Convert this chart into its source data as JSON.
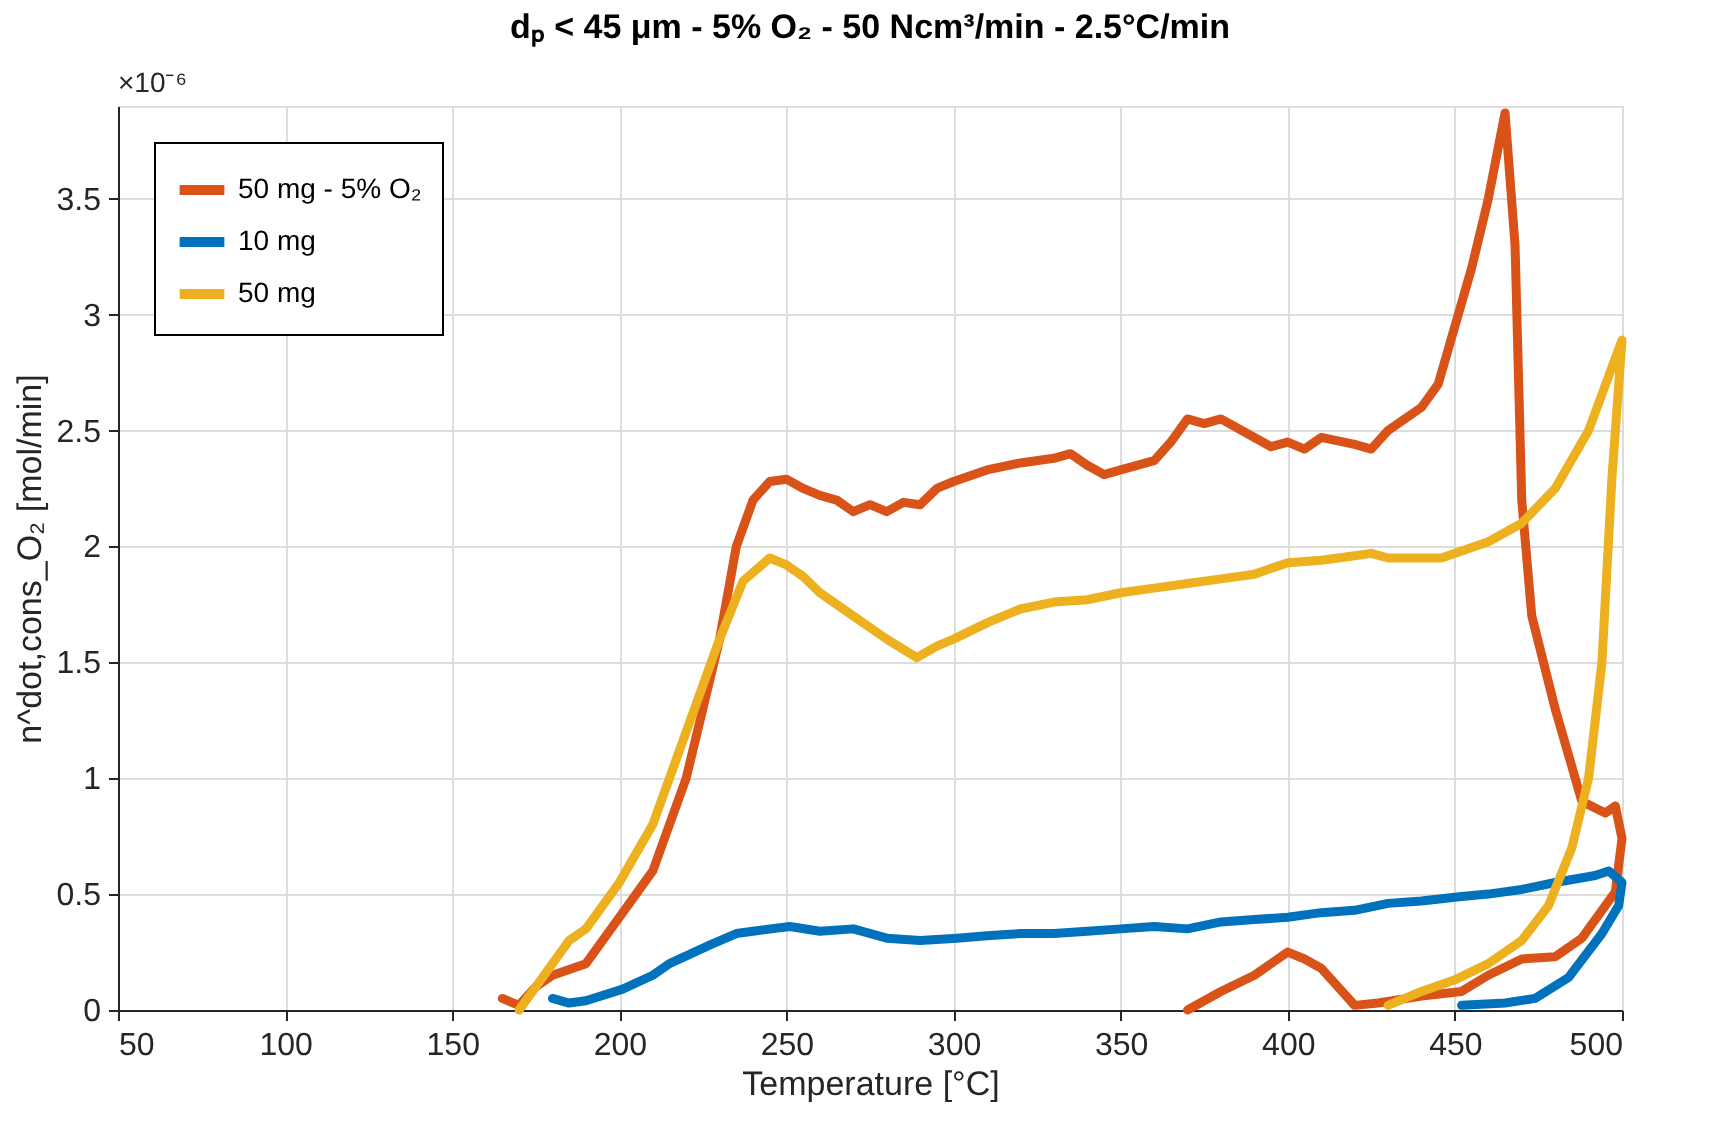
{
  "chart_data": {
    "type": "line",
    "title": "dₚ < 45 μm - 5% O₂ - 50 Ncm³/min - 2.5°C/min",
    "xlabel": "Temperature [°C]",
    "ylabel": "n^dot,cons_O₂ [mol/min]",
    "annotations": [
      "×10⁻⁶"
    ],
    "xlim": [
      50,
      500
    ],
    "xticks": [
      50,
      100,
      150,
      200,
      250,
      300,
      350,
      400,
      450,
      500
    ],
    "ylim": [
      0,
      3.9
    ],
    "yticks": [
      0,
      0.5,
      1,
      1.5,
      2,
      2.5,
      3,
      3.5
    ],
    "grid": true,
    "legend": "top left",
    "line_style": "solid",
    "marker": "none",
    "series": [
      {
        "name": "50 mg - 5% O₂",
        "color": "#d95319",
        "x": [
          165,
          170,
          175,
          180,
          190,
          200,
          210,
          220,
          230,
          235,
          240,
          245,
          250,
          255,
          260,
          265,
          270,
          275,
          280,
          285,
          290,
          295,
          300,
          310,
          320,
          330,
          335,
          340,
          345,
          350,
          360,
          365,
          370,
          375,
          380,
          390,
          395,
          400,
          405,
          410,
          420,
          425,
          430,
          440,
          445,
          450,
          455,
          460,
          465,
          468,
          470,
          473,
          480,
          488,
          495,
          498,
          500,
          498,
          488,
          480,
          470,
          460,
          452,
          440,
          427,
          420,
          415,
          410,
          405,
          400,
          395,
          390,
          380,
          370
        ],
        "values": [
          0.05,
          0.02,
          0.1,
          0.15,
          0.2,
          0.4,
          0.6,
          1.0,
          1.6,
          2.0,
          2.2,
          2.28,
          2.29,
          2.25,
          2.22,
          2.2,
          2.15,
          2.18,
          2.15,
          2.19,
          2.18,
          2.25,
          2.28,
          2.33,
          2.36,
          2.38,
          2.4,
          2.35,
          2.31,
          2.33,
          2.37,
          2.45,
          2.55,
          2.53,
          2.55,
          2.47,
          2.43,
          2.45,
          2.42,
          2.47,
          2.44,
          2.42,
          2.5,
          2.6,
          2.7,
          2.95,
          3.2,
          3.5,
          3.87,
          3.3,
          2.2,
          1.7,
          1.3,
          0.9,
          0.85,
          0.88,
          0.74,
          0.51,
          0.31,
          0.23,
          0.22,
          0.15,
          0.08,
          0.06,
          0.03,
          0.02,
          0.1,
          0.18,
          0.22,
          0.25,
          0.2,
          0.15,
          0.08,
          0.0
        ]
      },
      {
        "name": "10 mg",
        "color": "#0072bd",
        "x": [
          180,
          185,
          190,
          201,
          210,
          215,
          227,
          235,
          240,
          251,
          260,
          270,
          280,
          290,
          301,
          310,
          320,
          330,
          340,
          350,
          360,
          370,
          380,
          390,
          400,
          410,
          420,
          430,
          440,
          452,
          460,
          470,
          480,
          492,
          496,
          500,
          499,
          494,
          484,
          474,
          465,
          452
        ],
        "values": [
          0.05,
          0.03,
          0.04,
          0.09,
          0.15,
          0.2,
          0.28,
          0.33,
          0.34,
          0.36,
          0.34,
          0.35,
          0.31,
          0.3,
          0.31,
          0.32,
          0.33,
          0.33,
          0.34,
          0.35,
          0.36,
          0.35,
          0.38,
          0.39,
          0.4,
          0.42,
          0.43,
          0.46,
          0.47,
          0.49,
          0.5,
          0.52,
          0.55,
          0.58,
          0.6,
          0.55,
          0.45,
          0.33,
          0.14,
          0.05,
          0.03,
          0.02
        ]
      },
      {
        "name": "50 mg",
        "color": "#edb120",
        "x": [
          170,
          175,
          180,
          185,
          190,
          200,
          210,
          220,
          230,
          237,
          245,
          250,
          255,
          260,
          270,
          280,
          289,
          295,
          300,
          310,
          320,
          330,
          340,
          350,
          360,
          370,
          380,
          390,
          400,
          410,
          420,
          425,
          430,
          446,
          460,
          470,
          480,
          490,
          500,
          497,
          494,
          490,
          485,
          478,
          470,
          460,
          450,
          440,
          430
        ],
        "values": [
          0.0,
          0.1,
          0.2,
          0.3,
          0.35,
          0.55,
          0.8,
          1.2,
          1.6,
          1.85,
          1.95,
          1.92,
          1.87,
          1.8,
          1.7,
          1.6,
          1.52,
          1.57,
          1.6,
          1.67,
          1.73,
          1.76,
          1.77,
          1.8,
          1.82,
          1.84,
          1.86,
          1.88,
          1.93,
          1.94,
          1.96,
          1.97,
          1.95,
          1.95,
          2.02,
          2.1,
          2.25,
          2.5,
          2.89,
          2.3,
          1.5,
          1.0,
          0.7,
          0.45,
          0.3,
          0.2,
          0.13,
          0.08,
          0.02
        ]
      }
    ]
  }
}
